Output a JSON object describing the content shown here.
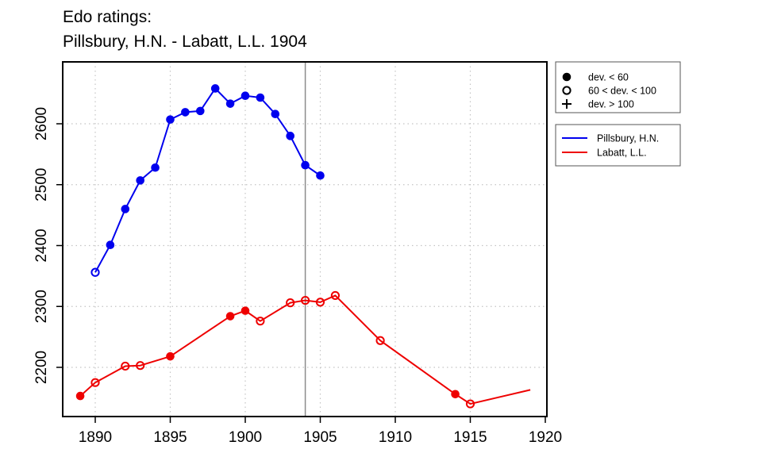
{
  "chart_data": {
    "type": "line",
    "title_lines": [
      "Edo ratings:",
      "Pillsbury, H.N. - Labatt, L.L. 1904"
    ],
    "xlabel": "",
    "ylabel": "",
    "xlim": [
      1889,
      1919
    ],
    "ylim": [
      2135,
      2675
    ],
    "x_ticks": [
      1890,
      1895,
      1900,
      1905,
      1910,
      1915,
      1920
    ],
    "y_ticks": [
      2200,
      2300,
      2400,
      2500,
      2600
    ],
    "grid": true,
    "reference_line_x": 1904,
    "legend_position": "right",
    "marker_legend": [
      {
        "symbol": "filled",
        "label": "dev. < 60"
      },
      {
        "symbol": "open",
        "label": "60 < dev. < 100"
      },
      {
        "symbol": "plus",
        "label": "dev. > 100"
      }
    ],
    "series": [
      {
        "name": "Pillsbury, H.N.",
        "color": "#0000ee",
        "points": [
          {
            "x": 1890,
            "y": 2356,
            "m": "open"
          },
          {
            "x": 1891,
            "y": 2401,
            "m": "filled"
          },
          {
            "x": 1892,
            "y": 2460,
            "m": "filled"
          },
          {
            "x": 1893,
            "y": 2507,
            "m": "filled"
          },
          {
            "x": 1894,
            "y": 2528,
            "m": "filled"
          },
          {
            "x": 1895,
            "y": 2607,
            "m": "filled"
          },
          {
            "x": 1896,
            "y": 2619,
            "m": "filled"
          },
          {
            "x": 1897,
            "y": 2621,
            "m": "filled"
          },
          {
            "x": 1898,
            "y": 2658,
            "m": "filled"
          },
          {
            "x": 1899,
            "y": 2633,
            "m": "filled"
          },
          {
            "x": 1900,
            "y": 2646,
            "m": "filled"
          },
          {
            "x": 1901,
            "y": 2643,
            "m": "filled"
          },
          {
            "x": 1902,
            "y": 2616,
            "m": "filled"
          },
          {
            "x": 1903,
            "y": 2580,
            "m": "filled"
          },
          {
            "x": 1904,
            "y": 2532,
            "m": "filled"
          },
          {
            "x": 1905,
            "y": 2515,
            "m": "filled"
          }
        ]
      },
      {
        "name": "Labatt, L.L.",
        "color": "#ee0000",
        "points": [
          {
            "x": 1889,
            "y": 2153,
            "m": "filled"
          },
          {
            "x": 1890,
            "y": 2175,
            "m": "open"
          },
          {
            "x": 1892,
            "y": 2202,
            "m": "open"
          },
          {
            "x": 1893,
            "y": 2203,
            "m": "open"
          },
          {
            "x": 1895,
            "y": 2218,
            "m": "filled"
          },
          {
            "x": 1899,
            "y": 2284,
            "m": "filled"
          },
          {
            "x": 1900,
            "y": 2293,
            "m": "filled"
          },
          {
            "x": 1901,
            "y": 2276,
            "m": "open"
          },
          {
            "x": 1903,
            "y": 2306,
            "m": "open"
          },
          {
            "x": 1904,
            "y": 2310,
            "m": "open"
          },
          {
            "x": 1905,
            "y": 2307,
            "m": "open"
          },
          {
            "x": 1906,
            "y": 2318,
            "m": "open"
          },
          {
            "x": 1909,
            "y": 2244,
            "m": "open"
          },
          {
            "x": 1914,
            "y": 2156,
            "m": "filled"
          },
          {
            "x": 1915,
            "y": 2140,
            "m": "open"
          },
          {
            "x": 1919,
            "y": 2163,
            "m": "none"
          }
        ]
      }
    ]
  }
}
